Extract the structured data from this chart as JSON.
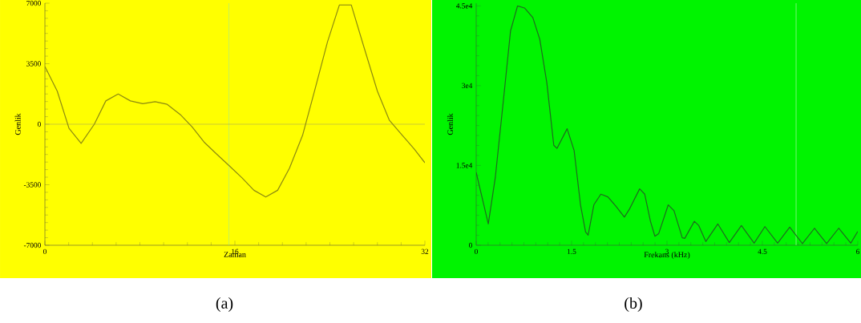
{
  "chart_data": [
    {
      "type": "line",
      "xlabel": "Zaman",
      "ylabel": "Genlik",
      "xlim": [
        0,
        32
      ],
      "ylim": [
        -7000,
        7000
      ],
      "xticks": [
        0,
        16,
        32
      ],
      "yticks": [
        -7000,
        -3500,
        0,
        3500,
        7000
      ],
      "x": [
        0,
        1.04,
        2.03,
        3.05,
        4.16,
        5.13,
        6.17,
        7.2,
        8.24,
        9.28,
        10.3,
        11.4,
        12.4,
        13.4,
        14.5,
        15.5,
        16.6,
        17.6,
        18.6,
        19.6,
        20.6,
        21.7,
        22.7,
        23.8,
        24.8,
        25.8,
        26.8,
        28,
        29,
        30.1,
        31.1,
        32
      ],
      "series": [
        {
          "color": "#8c8a10",
          "values": [
            3340,
            1910,
            -240,
            -1110,
            0,
            1350,
            1750,
            1350,
            1190,
            1300,
            1150,
            560,
            -160,
            -1030,
            -1750,
            -2390,
            -3100,
            -3820,
            -4210,
            -3820,
            -2540,
            -640,
            1910,
            4770,
            6900,
            6900,
            4610,
            1910,
            240,
            -640,
            -1430,
            -2230
          ]
        }
      ],
      "ref_lines": [
        {
          "axis": "x",
          "value": 15.5,
          "color": "#80e0c0"
        },
        {
          "axis": "y",
          "value": 0,
          "color": "#9a9a60"
        }
      ],
      "annotations": [
        "(a)"
      ]
    },
    {
      "type": "line",
      "xlabel": "Frekans (kHz)",
      "ylabel": "Genlik",
      "xlim": [
        0,
        6
      ],
      "ylim": [
        0,
        45500
      ],
      "xticks": [
        0,
        1.5,
        3,
        4.5,
        6
      ],
      "yticks": [
        0,
        {
          "value": 15000,
          "label": "1.5e4"
        },
        {
          "value": 30000,
          "label": "3e4"
        },
        {
          "value": 45000,
          "label": "4.5e4"
        }
      ],
      "x": [
        0,
        0.19,
        0.3,
        0.43,
        0.54,
        0.65,
        0.76,
        0.89,
        1.0,
        1.11,
        1.22,
        1.27,
        1.43,
        1.54,
        1.64,
        1.72,
        1.76,
        1.85,
        1.96,
        2.07,
        2.2,
        2.33,
        2.41,
        2.57,
        2.65,
        2.74,
        2.81,
        2.87,
        3.02,
        3.11,
        3.24,
        3.28,
        3.43,
        3.5,
        3.61,
        3.8,
        3.98,
        4.17,
        4.37,
        4.54,
        4.74,
        4.93,
        5.13,
        5.32,
        5.51,
        5.7,
        5.89,
        6.0
      ],
      "series": [
        {
          "color": "#1f6a1f",
          "values": [
            13700,
            4000,
            12700,
            27500,
            40300,
            45000,
            44600,
            42800,
            38700,
            30600,
            18800,
            18200,
            21900,
            17800,
            7600,
            2500,
            1900,
            7600,
            9600,
            9100,
            7300,
            5300,
            6800,
            10600,
            9600,
            4500,
            1700,
            2200,
            7600,
            6500,
            1400,
            1300,
            4500,
            3700,
            700,
            4000,
            500,
            3700,
            400,
            3500,
            400,
            3400,
            300,
            3200,
            300,
            3200,
            400,
            2600
          ]
        }
      ],
      "ref_lines": [
        {
          "axis": "x",
          "value": 5.03,
          "color": "#d8f8d8"
        }
      ],
      "annotations": [
        "(b)"
      ]
    }
  ]
}
